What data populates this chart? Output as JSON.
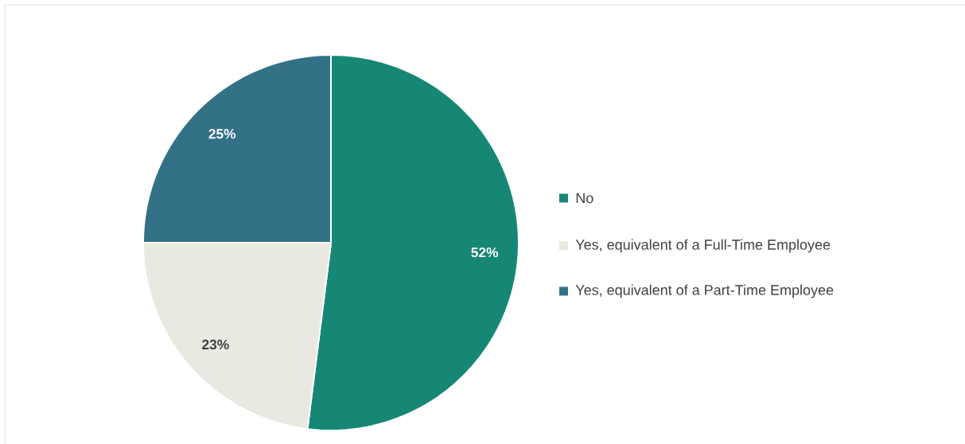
{
  "chart_data": {
    "type": "pie",
    "categories": [
      "No",
      "Yes, equivalent of a Full-Time Employee",
      "Yes, equivalent of a Part-Time Employee"
    ],
    "values": [
      52,
      23,
      25
    ],
    "colors": [
      "#178775",
      "#e9e8e1",
      "#337187"
    ],
    "value_labels": [
      "52%",
      "23%",
      "25%"
    ],
    "legend": "right"
  }
}
